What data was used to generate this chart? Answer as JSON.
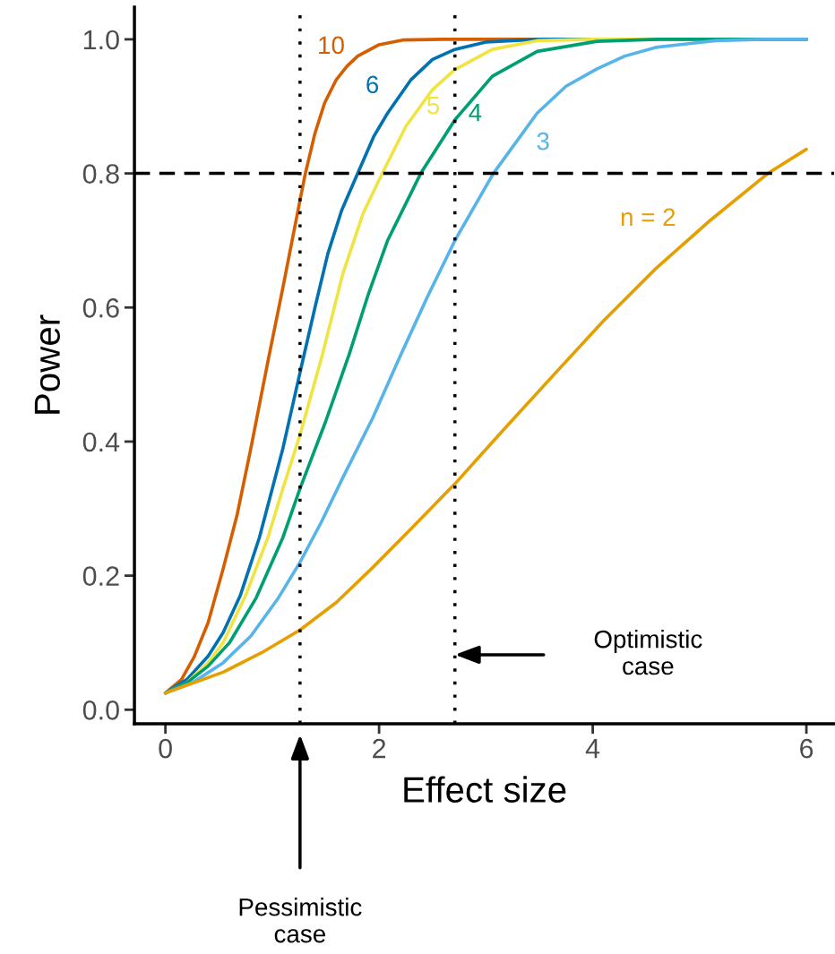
{
  "chart_data": {
    "type": "line",
    "xlabel": "Effect size",
    "ylabel": "Power",
    "xlim": [
      -0.29,
      6.26
    ],
    "ylim": [
      -0.021,
      1.048
    ],
    "xticks": [
      0,
      2,
      4,
      6
    ],
    "yticks": [
      {
        "value": 0,
        "label": "0.0"
      },
      {
        "value": 0.2,
        "label": "0.2"
      },
      {
        "value": 0.4,
        "label": "0.4"
      },
      {
        "value": 0.6,
        "label": "0.6"
      },
      {
        "value": 0.8,
        "label": "0.8"
      },
      {
        "value": 1,
        "label": "1.0"
      }
    ],
    "grid": false,
    "legend": false,
    "line_style": "solid",
    "marker": "none",
    "series": [
      {
        "name": "10",
        "color": "#d55e00",
        "x": [
          0,
          0.15,
          0.27,
          0.4,
          0.54,
          0.67,
          0.8,
          0.96,
          1.1,
          1.26,
          1.31,
          1.4,
          1.49,
          1.6,
          1.7,
          1.8,
          2.0,
          2.22,
          2.6,
          6
        ],
        "values": [
          0.025,
          0.045,
          0.079,
          0.13,
          0.21,
          0.29,
          0.39,
          0.52,
          0.63,
          0.76,
          0.8,
          0.86,
          0.905,
          0.94,
          0.96,
          0.975,
          0.992,
          0.999,
          1,
          1
        ]
      },
      {
        "name": "6",
        "color": "#0072b2",
        "x": [
          0,
          0.2,
          0.4,
          0.54,
          0.7,
          0.88,
          1.1,
          1.27,
          1.4,
          1.52,
          1.65,
          1.8,
          1.95,
          2.08,
          2.3,
          2.5,
          2.71,
          3.0,
          3.5,
          6
        ],
        "values": [
          0.025,
          0.045,
          0.08,
          0.115,
          0.17,
          0.257,
          0.39,
          0.51,
          0.6,
          0.68,
          0.745,
          0.8,
          0.855,
          0.89,
          0.94,
          0.97,
          0.985,
          0.996,
          1,
          1
        ]
      },
      {
        "name": "5",
        "color": "#f0e442",
        "x": [
          0,
          0.2,
          0.4,
          0.54,
          0.75,
          0.96,
          1.1,
          1.26,
          1.47,
          1.66,
          1.85,
          2.03,
          2.25,
          2.5,
          2.71,
          3.06,
          3.48,
          4,
          6
        ],
        "values": [
          0.025,
          0.04,
          0.07,
          0.1,
          0.17,
          0.257,
          0.33,
          0.41,
          0.53,
          0.65,
          0.74,
          0.8,
          0.87,
          0.925,
          0.955,
          0.985,
          0.998,
          1,
          1
        ]
      },
      {
        "name": "4",
        "color": "#009e73",
        "x": [
          0,
          0.2,
          0.4,
          0.6,
          0.85,
          1.1,
          1.26,
          1.5,
          1.72,
          1.9,
          2.08,
          2.39,
          2.71,
          3.06,
          3.48,
          4.04,
          4.6,
          6
        ],
        "values": [
          0.025,
          0.04,
          0.065,
          0.1,
          0.167,
          0.257,
          0.33,
          0.43,
          0.53,
          0.62,
          0.7,
          0.8,
          0.88,
          0.945,
          0.982,
          0.997,
          1,
          1
        ]
      },
      {
        "name": "3",
        "color": "#56b4e9",
        "x": [
          0,
          0.25,
          0.54,
          0.8,
          1.05,
          1.26,
          1.46,
          1.66,
          1.94,
          2.19,
          2.45,
          2.71,
          3.07,
          3.48,
          3.75,
          4.04,
          4.3,
          4.59,
          5.15,
          5.6,
          6
        ],
        "values": [
          0.025,
          0.04,
          0.07,
          0.11,
          0.165,
          0.22,
          0.28,
          0.346,
          0.435,
          0.525,
          0.615,
          0.7,
          0.8,
          0.89,
          0.93,
          0.956,
          0.975,
          0.988,
          0.998,
          1,
          1
        ]
      },
      {
        "name": "n = 2",
        "color": "#e69f00",
        "x": [
          0,
          0.54,
          0.9,
          1.26,
          1.6,
          1.94,
          2.3,
          2.71,
          3.15,
          3.62,
          4.1,
          4.59,
          5.1,
          5.64,
          6
        ],
        "values": [
          0.025,
          0.056,
          0.085,
          0.119,
          0.16,
          0.212,
          0.27,
          0.337,
          0.415,
          0.497,
          0.58,
          0.658,
          0.73,
          0.8,
          0.836
        ]
      }
    ],
    "ref_lines": [
      {
        "axis": "y",
        "value": 0.8,
        "line_style": "dashed",
        "color": "#000000"
      },
      {
        "axis": "x",
        "value": 1.26,
        "line_style": "dotted",
        "color": "#000000"
      },
      {
        "axis": "x",
        "value": 2.71,
        "line_style": "dotted",
        "color": "#000000"
      }
    ],
    "annotations": [
      "Pessimistic\ncase",
      "Optimistic\ncase"
    ]
  }
}
